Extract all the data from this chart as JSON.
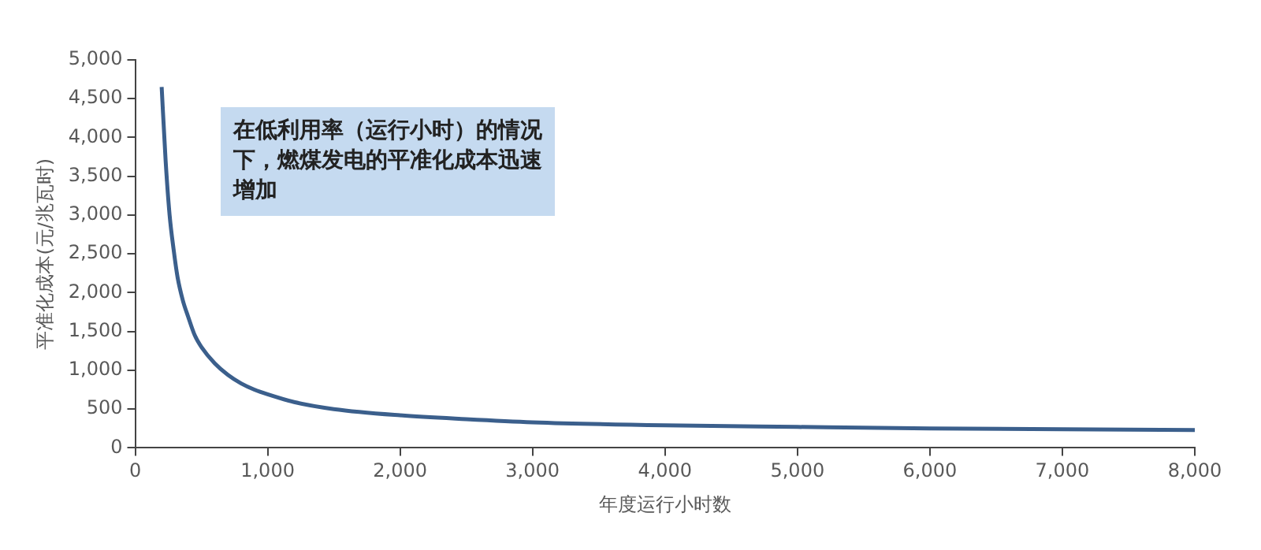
{
  "chart_data": {
    "type": "line",
    "xlabel": "年度运行小时数",
    "ylabel": "平准化成本(元/兆瓦时)",
    "annotations": [
      "在低利用率（运行小时）的情况下，燃煤发电的平准化成本迅速增加"
    ],
    "series": [
      {
        "color": "#3b5f8c",
        "x": [
          200,
          230,
          260,
          290,
          320,
          360,
          400,
          450,
          500,
          600,
          700,
          800,
          900,
          1000,
          1200,
          1500,
          2000,
          2500,
          3000,
          4000,
          5000,
          6000,
          7000,
          8000
        ],
        "values": [
          4650,
          3700,
          3000,
          2560,
          2200,
          1900,
          1690,
          1450,
          1300,
          1090,
          940,
          830,
          750,
          690,
          590,
          500,
          420,
          370,
          330,
          290,
          270,
          250,
          240,
          230
        ]
      }
    ],
    "xlim": [
      0,
      8000
    ],
    "xticks": [
      {
        "value": 0,
        "label": "0"
      },
      {
        "value": 1000,
        "label": "1,000"
      },
      {
        "value": 2000,
        "label": "2,000"
      },
      {
        "value": 3000,
        "label": "3,000"
      },
      {
        "value": 4000,
        "label": "4,000"
      },
      {
        "value": 5000,
        "label": "5,000"
      },
      {
        "value": 6000,
        "label": "6,000"
      },
      {
        "value": 7000,
        "label": "7,000"
      },
      {
        "value": 8000,
        "label": "8,000"
      }
    ],
    "ylim": [
      0,
      5000
    ],
    "yticks": [
      {
        "value": 0,
        "label": "0"
      },
      {
        "value": 500,
        "label": "500"
      },
      {
        "value": 1000,
        "label": "1,000"
      },
      {
        "value": 1500,
        "label": "1,500"
      },
      {
        "value": 2000,
        "label": "2,000"
      },
      {
        "value": 2500,
        "label": "2,500"
      },
      {
        "value": 3000,
        "label": "3,000"
      },
      {
        "value": 3500,
        "label": "3,500"
      },
      {
        "value": 4000,
        "label": "4,000"
      },
      {
        "value": 4500,
        "label": "4,500"
      },
      {
        "value": 5000,
        "label": "5,000"
      }
    ],
    "grid": false,
    "legend": false,
    "marker": "none",
    "line_style": "solid"
  }
}
